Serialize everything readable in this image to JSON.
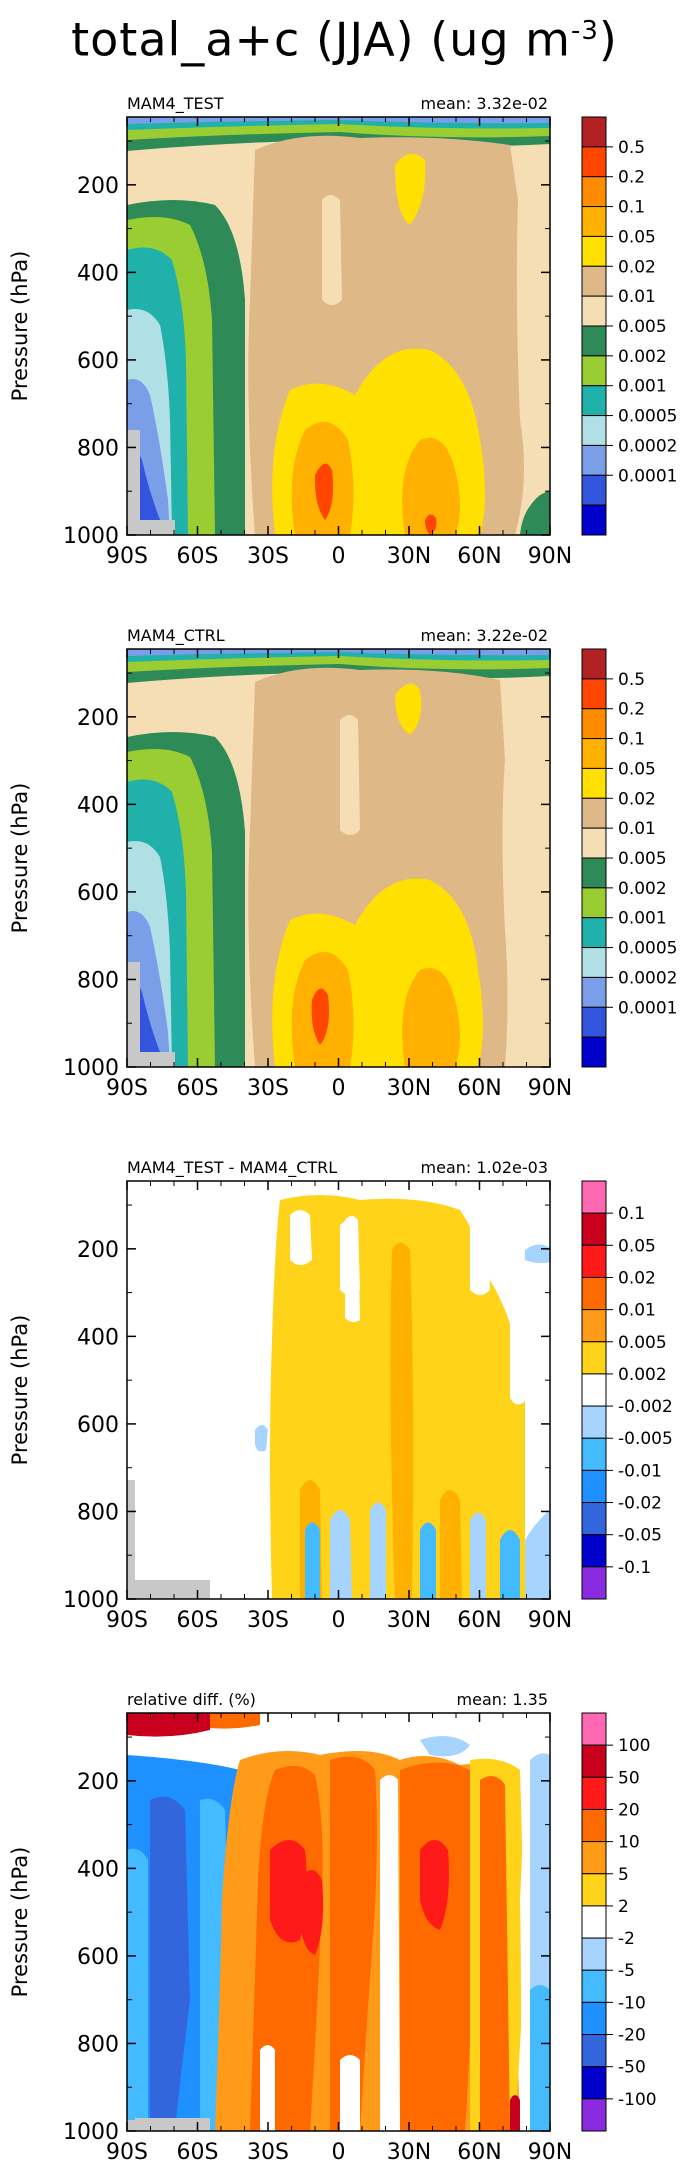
{
  "figure": {
    "title_main": "total_a+c (JJA) (ug m",
    "title_exp": "-3",
    "title_end": ")"
  },
  "chart_data": [
    {
      "type": "contour",
      "panel_label": "MAM4_TEST",
      "mean_label": "mean: 3.32e-02",
      "ylabel": "Pressure (hPa)",
      "ylim": [
        1000,
        45
      ],
      "y_ticks": [
        200,
        400,
        600,
        800,
        1000
      ],
      "x_ticks": [
        "90S",
        "60S",
        "30S",
        "0",
        "30N",
        "60N",
        "90N"
      ],
      "levels": [
        "0.5",
        "0.2",
        "0.1",
        "0.05",
        "0.02",
        "0.01",
        "0.005",
        "0.002",
        "0.001",
        "0.0005",
        "0.0002",
        "0.0001"
      ],
      "colors": [
        "#b22222",
        "#ff4500",
        "#ff8c00",
        "#ffb000",
        "#ffe000",
        "#deb887",
        "#f5deb3",
        "#2e8b57",
        "#9acd32",
        "#20b2aa",
        "#b0e0e6",
        "#7b9ee8",
        "#3355dd",
        "#0000cd"
      ]
    },
    {
      "type": "contour",
      "panel_label": "MAM4_CTRL",
      "mean_label": "mean: 3.22e-02",
      "ylabel": "Pressure (hPa)",
      "ylim": [
        1000,
        45
      ],
      "y_ticks": [
        200,
        400,
        600,
        800,
        1000
      ],
      "x_ticks": [
        "90S",
        "60S",
        "30S",
        "0",
        "30N",
        "60N",
        "90N"
      ],
      "levels": [
        "0.5",
        "0.2",
        "0.1",
        "0.05",
        "0.02",
        "0.01",
        "0.005",
        "0.002",
        "0.001",
        "0.0005",
        "0.0002",
        "0.0001"
      ],
      "colors": [
        "#b22222",
        "#ff4500",
        "#ff8c00",
        "#ffb000",
        "#ffe000",
        "#deb887",
        "#f5deb3",
        "#2e8b57",
        "#9acd32",
        "#20b2aa",
        "#b0e0e6",
        "#7b9ee8",
        "#3355dd",
        "#0000cd"
      ]
    },
    {
      "type": "contour",
      "panel_label": "MAM4_TEST - MAM4_CTRL",
      "mean_label": "mean: 1.02e-03",
      "ylabel": "Pressure (hPa)",
      "ylim": [
        1000,
        45
      ],
      "y_ticks": [
        200,
        400,
        600,
        800,
        1000
      ],
      "x_ticks": [
        "90S",
        "60S",
        "30S",
        "0",
        "30N",
        "60N",
        "90N"
      ],
      "levels": [
        "0.1",
        "0.05",
        "0.02",
        "0.01",
        "0.005",
        "0.002",
        "-0.002",
        "-0.005",
        "-0.01",
        "-0.02",
        "-0.05",
        "-0.1"
      ],
      "colors": [
        "#ff69b4",
        "#c8001e",
        "#ff1a1a",
        "#ff6a00",
        "#ff9b19",
        "#ffd31a",
        "#ffffff",
        "#a7d3ff",
        "#44bbff",
        "#1e90ff",
        "#3366dd",
        "#0000cd",
        "#8a2be2"
      ]
    },
    {
      "type": "contour",
      "panel_label": "relative diff. (%)",
      "mean_label": "mean:  1.35",
      "ylabel": "Pressure (hPa)",
      "ylim": [
        1000,
        45
      ],
      "y_ticks": [
        200,
        400,
        600,
        800,
        1000
      ],
      "x_ticks": [
        "90S",
        "60S",
        "30S",
        "0",
        "30N",
        "60N",
        "90N"
      ],
      "levels": [
        "100",
        "50",
        "20",
        "10",
        "5",
        "2",
        "-2",
        "-5",
        "-10",
        "-20",
        "-50",
        "-100"
      ],
      "colors": [
        "#ff69b4",
        "#c8001e",
        "#ff1a1a",
        "#ff6a00",
        "#ff9b19",
        "#ffd31a",
        "#ffffff",
        "#a7d3ff",
        "#44bbff",
        "#1e90ff",
        "#3366dd",
        "#0000cd",
        "#8a2be2"
      ]
    }
  ]
}
